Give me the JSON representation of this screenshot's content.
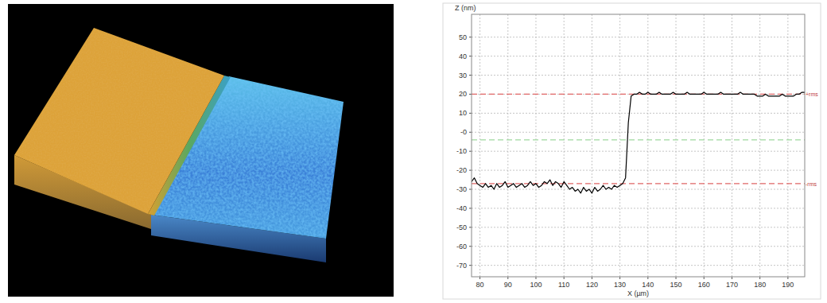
{
  "chart_data": {
    "type": "line",
    "x_label": "X (µm)",
    "y_label": "Z (nm)",
    "color": "#000000",
    "grid": true,
    "xlim": [
      77,
      196
    ],
    "ylim": [
      -76,
      62
    ],
    "xticks": [
      80,
      90,
      100,
      110,
      120,
      130,
      140,
      150,
      160,
      170,
      180,
      190
    ],
    "yticks": [
      -70,
      -60,
      -50,
      -40,
      -30,
      -20,
      -10,
      {
        "value": 0,
        "label": "-0"
      },
      10,
      20,
      30,
      40,
      50
    ],
    "reference_lines": [
      {
        "value": 20,
        "label": "+rms",
        "color": "#e06666"
      },
      {
        "value": -4,
        "color": "#9fd89f"
      },
      {
        "value": -27,
        "label": "-rms",
        "color": "#e06666"
      }
    ],
    "x": [
      77,
      78,
      79,
      80,
      81,
      82,
      83,
      84,
      85,
      86,
      87,
      88,
      89,
      90,
      91,
      92,
      93,
      94,
      95,
      96,
      97,
      98,
      99,
      100,
      101,
      102,
      103,
      104,
      105,
      106,
      107,
      108,
      109,
      110,
      111,
      112,
      113,
      114,
      115,
      116,
      117,
      118,
      119,
      120,
      121,
      122,
      123,
      124,
      125,
      126,
      127,
      128,
      129,
      130,
      131,
      132,
      133,
      134,
      135,
      136,
      137,
      138,
      139,
      140,
      141,
      142,
      143,
      144,
      145,
      146,
      147,
      148,
      149,
      150,
      151,
      152,
      153,
      154,
      155,
      156,
      157,
      158,
      159,
      160,
      161,
      162,
      163,
      164,
      165,
      166,
      167,
      168,
      169,
      170,
      171,
      172,
      173,
      174,
      175,
      176,
      177,
      178,
      179,
      180,
      181,
      182,
      183,
      184,
      185,
      186,
      187,
      188,
      189,
      190,
      191,
      192,
      193,
      194,
      195,
      196
    ],
    "values": [
      -26,
      -24,
      -27,
      -28,
      -29,
      -27,
      -29,
      -28,
      -30,
      -27,
      -29,
      -28,
      -26,
      -29,
      -28,
      -27,
      -29,
      -28,
      -27,
      -29,
      -28,
      -26,
      -28,
      -27,
      -29,
      -28,
      -26,
      -27,
      -25,
      -28,
      -26,
      -27,
      -29,
      -26,
      -28,
      -30,
      -29,
      -31,
      -30,
      -32,
      -29,
      -31,
      -30,
      -32,
      -29,
      -31,
      -30,
      -28,
      -30,
      -29,
      -30,
      -28,
      -29,
      -28,
      -27,
      -24,
      5,
      19,
      20,
      20,
      21,
      20,
      20,
      21,
      20,
      20,
      20,
      21,
      20,
      20,
      20,
      20,
      21,
      20,
      20,
      20,
      20,
      21,
      20,
      20,
      20,
      20,
      20,
      21,
      20,
      20,
      20,
      20,
      20,
      21,
      20,
      20,
      20,
      20,
      20,
      20,
      21,
      20,
      20,
      20,
      20,
      20,
      19,
      19,
      19,
      20,
      19,
      19,
      19,
      19,
      19,
      20,
      19,
      19,
      19,
      19,
      20,
      20,
      21,
      21
    ]
  }
}
